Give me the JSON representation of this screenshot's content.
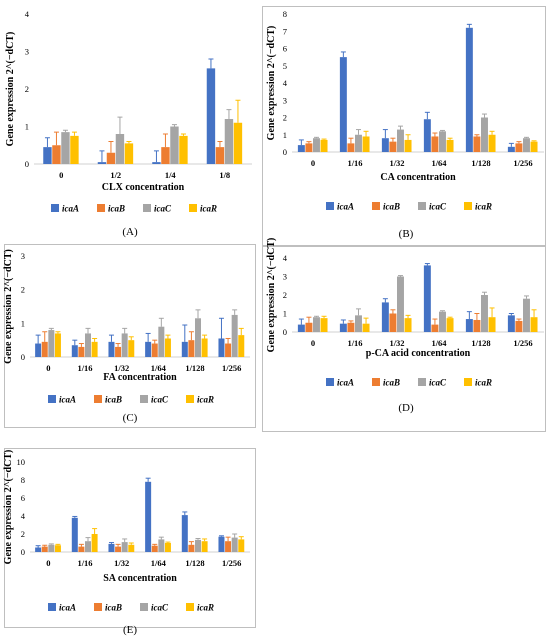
{
  "colors": {
    "icaA": "#4472C4",
    "icaB": "#ED7D31",
    "icaC": "#A5A5A5",
    "icaR": "#FFC000"
  },
  "chart_data": [
    {
      "id": "A",
      "panel_label": "(A)",
      "type": "bar",
      "title": "",
      "xlabel": "CLX concentration",
      "ylabel": "Gene expression 2^(−dCT)",
      "ylim": [
        0,
        4
      ],
      "yticks": [
        "0",
        "1",
        "2",
        "3",
        "4"
      ],
      "grid": false,
      "legend": "bottom",
      "categories": [
        "0",
        "1/2",
        "1/4",
        "1/8"
      ],
      "series": [
        {
          "name": "icaA",
          "values": [
            0.45,
            0.05,
            0.05,
            2.55
          ],
          "errors": [
            0.25,
            0.3,
            0.3,
            0.25
          ]
        },
        {
          "name": "icaB",
          "values": [
            0.5,
            0.3,
            0.45,
            0.45
          ],
          "errors": [
            0.35,
            0.3,
            0.35,
            0.15
          ]
        },
        {
          "name": "icaC",
          "values": [
            0.85,
            0.8,
            1.0,
            1.2
          ],
          "errors": [
            0.05,
            0.45,
            0.05,
            0.25
          ]
        },
        {
          "name": "icaR",
          "values": [
            0.75,
            0.55,
            0.75,
            1.1
          ],
          "errors": [
            0.1,
            0.05,
            0.05,
            0.6
          ]
        }
      ]
    },
    {
      "id": "B",
      "panel_label": "(B)",
      "type": "bar",
      "title": "",
      "xlabel": "CA concentration",
      "ylabel": "Gene expression 2^(−dCT)",
      "ylim": [
        0,
        8
      ],
      "yticks": [
        "0",
        "1",
        "2",
        "3",
        "4",
        "5",
        "6",
        "7",
        "8"
      ],
      "grid": false,
      "legend": "bottom",
      "categories": [
        "0",
        "1/16",
        "1/32",
        "1/64",
        "1/128",
        "1/256"
      ],
      "series": [
        {
          "name": "icaA",
          "values": [
            0.4,
            5.5,
            0.8,
            1.9,
            7.2,
            0.3
          ],
          "errors": [
            0.3,
            0.3,
            0.5,
            0.4,
            0.2,
            0.2
          ]
        },
        {
          "name": "icaB",
          "values": [
            0.5,
            0.5,
            0.6,
            0.9,
            0.9,
            0.5
          ],
          "errors": [
            0.1,
            0.3,
            0.2,
            0.2,
            0.1,
            0.1
          ]
        },
        {
          "name": "icaC",
          "values": [
            0.8,
            1.0,
            1.3,
            1.2,
            2.0,
            0.8
          ],
          "errors": [
            0.05,
            0.3,
            0.2,
            0.05,
            0.2,
            0.05
          ]
        },
        {
          "name": "icaR",
          "values": [
            0.7,
            0.9,
            0.7,
            0.7,
            1.0,
            0.6
          ],
          "errors": [
            0.05,
            0.3,
            0.3,
            0.1,
            0.2,
            0.05
          ]
        }
      ]
    },
    {
      "id": "C",
      "panel_label": "(C)",
      "type": "bar",
      "title": "",
      "xlabel": "FA concentration",
      "ylabel": "Gene expression 2^(−dCT)",
      "ylim": [
        0,
        3
      ],
      "yticks": [
        "0",
        "1",
        "2",
        "3"
      ],
      "grid": false,
      "legend": "bottom",
      "categories": [
        "0",
        "1/16",
        "1/32",
        "1/64",
        "1/128",
        "1/256"
      ],
      "series": [
        {
          "name": "icaA",
          "values": [
            0.4,
            0.35,
            0.45,
            0.45,
            0.45,
            0.55
          ],
          "errors": [
            0.25,
            0.15,
            0.2,
            0.25,
            0.5,
            0.6
          ]
        },
        {
          "name": "icaB",
          "values": [
            0.45,
            0.3,
            0.3,
            0.4,
            0.5,
            0.4
          ],
          "errors": [
            0.3,
            0.1,
            0.1,
            0.1,
            0.25,
            0.15
          ]
        },
        {
          "name": "icaC",
          "values": [
            0.8,
            0.7,
            0.7,
            0.9,
            1.15,
            1.25
          ],
          "errors": [
            0.05,
            0.15,
            0.15,
            0.25,
            0.25,
            0.15
          ]
        },
        {
          "name": "icaR",
          "values": [
            0.7,
            0.45,
            0.5,
            0.55,
            0.55,
            0.65
          ],
          "errors": [
            0.05,
            0.1,
            0.1,
            0.1,
            0.1,
            0.2
          ]
        }
      ]
    },
    {
      "id": "D",
      "panel_label": "(D)",
      "type": "bar",
      "title": "",
      "xlabel": "p-CA acid concentration",
      "ylabel": "Gene expression 2^(−dCT)",
      "ylim": [
        0,
        4
      ],
      "yticks": [
        "0",
        "1",
        "2",
        "3",
        "4"
      ],
      "grid": false,
      "legend": "bottom",
      "categories": [
        "0",
        "1/16",
        "1/32",
        "1/64",
        "1/128",
        "1/256"
      ],
      "series": [
        {
          "name": "icaA",
          "values": [
            0.4,
            0.45,
            1.6,
            3.6,
            0.7,
            0.9
          ],
          "errors": [
            0.3,
            0.2,
            0.2,
            0.1,
            0.4,
            0.1
          ]
        },
        {
          "name": "icaB",
          "values": [
            0.5,
            0.5,
            1.0,
            0.4,
            0.65,
            0.6
          ],
          "errors": [
            0.3,
            0.1,
            0.2,
            0.3,
            0.35,
            0.1
          ]
        },
        {
          "name": "icaC",
          "values": [
            0.8,
            0.9,
            3.0,
            1.1,
            2.0,
            1.8
          ],
          "errors": [
            0.05,
            0.35,
            0.05,
            0.05,
            0.15,
            0.15
          ]
        },
        {
          "name": "icaR",
          "values": [
            0.75,
            0.45,
            0.75,
            0.75,
            0.8,
            0.8
          ],
          "errors": [
            0.1,
            0.3,
            0.15,
            0.05,
            0.5,
            0.4
          ]
        }
      ]
    },
    {
      "id": "E",
      "panel_label": "(E)",
      "type": "bar",
      "title": "",
      "xlabel": "SA concentration",
      "ylabel": "Gene expression 2^(−dCT)",
      "ylim": [
        0,
        10
      ],
      "yticks": [
        "0",
        "2",
        "4",
        "6",
        "8",
        "10"
      ],
      "grid": false,
      "legend": "bottom",
      "categories": [
        "0",
        "1/16",
        "1/32",
        "1/64",
        "1/128",
        "1/256"
      ],
      "series": [
        {
          "name": "icaA",
          "values": [
            0.5,
            3.8,
            0.9,
            7.8,
            4.1,
            1.7
          ],
          "errors": [
            0.2,
            0.15,
            0.15,
            0.4,
            0.35,
            0.1
          ]
        },
        {
          "name": "icaB",
          "values": [
            0.6,
            0.6,
            0.6,
            0.7,
            0.8,
            1.2
          ],
          "errors": [
            0.15,
            0.25,
            0.25,
            0.15,
            0.35,
            0.45
          ]
        },
        {
          "name": "icaC",
          "values": [
            0.8,
            1.2,
            1.1,
            1.4,
            1.35,
            1.6
          ],
          "errors": [
            0.1,
            0.4,
            0.35,
            0.25,
            0.15,
            0.4
          ]
        },
        {
          "name": "icaR",
          "values": [
            0.75,
            2.0,
            0.8,
            1.0,
            1.2,
            1.4
          ],
          "errors": [
            0.1,
            0.6,
            0.2,
            0.1,
            0.25,
            0.3
          ]
        }
      ]
    }
  ]
}
